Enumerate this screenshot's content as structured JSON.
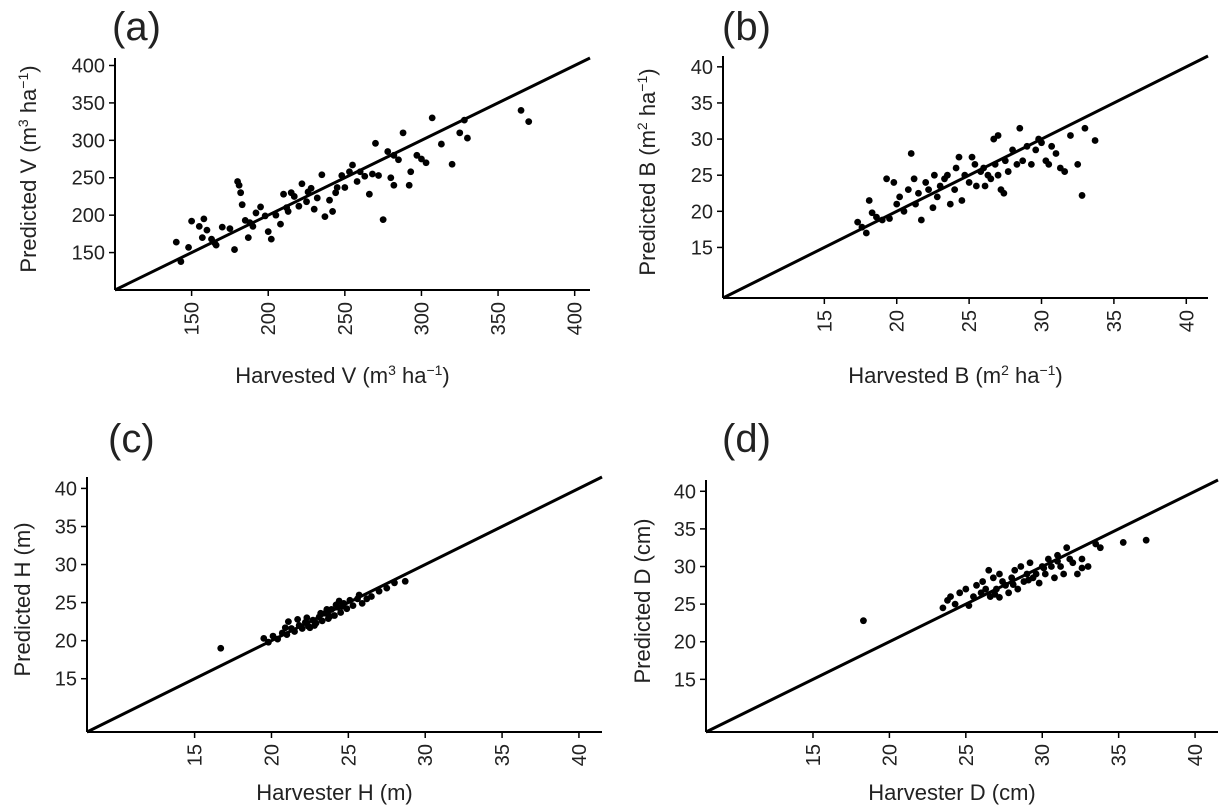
{
  "chart_data": [
    {
      "type": "scatter",
      "panel_label": "(a)",
      "xlabel": "Harvested V (m3 ha−1)",
      "ylabel": "Predicted V (m3 ha−1)",
      "xlabel_parts": {
        "pre": "Harvested V (m",
        "sup1": "3",
        "mid": " ha",
        "sup2": "−1",
        "post": ")"
      },
      "ylabel_parts": {
        "pre": "Predicted V (m",
        "sup1": "3",
        "mid": " ha",
        "sup2": "−1",
        "post": ")"
      },
      "xlim": [
        100,
        410
      ],
      "ylim": [
        100,
        410
      ],
      "xticks": [
        150,
        200,
        250,
        300,
        350,
        400
      ],
      "xtick_labels": [
        "150",
        "200",
        "250",
        "300",
        "350",
        "400"
      ],
      "yticks": [
        150,
        200,
        250,
        300,
        350,
        400
      ],
      "ytick_labels": [
        "150",
        "200",
        "250",
        "300",
        "350",
        "400"
      ],
      "reference_line": "1:1",
      "grid": false,
      "points": [
        [
          140,
          164
        ],
        [
          143,
          138
        ],
        [
          148,
          157
        ],
        [
          150,
          192
        ],
        [
          155,
          185
        ],
        [
          157,
          170
        ],
        [
          158,
          195
        ],
        [
          160,
          180
        ],
        [
          163,
          168
        ],
        [
          165,
          163
        ],
        [
          166,
          160
        ],
        [
          170,
          184
        ],
        [
          175,
          182
        ],
        [
          178,
          154
        ],
        [
          180,
          245
        ],
        [
          181,
          240
        ],
        [
          182,
          230
        ],
        [
          183,
          214
        ],
        [
          185,
          193
        ],
        [
          187,
          170
        ],
        [
          188,
          190
        ],
        [
          190,
          185
        ],
        [
          192,
          203
        ],
        [
          195,
          211
        ],
        [
          198,
          199
        ],
        [
          200,
          178
        ],
        [
          202,
          168
        ],
        [
          205,
          200
        ],
        [
          208,
          188
        ],
        [
          210,
          228
        ],
        [
          212,
          210
        ],
        [
          213,
          205
        ],
        [
          215,
          230
        ],
        [
          217,
          225
        ],
        [
          220,
          212
        ],
        [
          222,
          242
        ],
        [
          225,
          218
        ],
        [
          226,
          231
        ],
        [
          228,
          236
        ],
        [
          230,
          208
        ],
        [
          232,
          223
        ],
        [
          235,
          254
        ],
        [
          237,
          198
        ],
        [
          240,
          220
        ],
        [
          242,
          205
        ],
        [
          244,
          230
        ],
        [
          245,
          237
        ],
        [
          248,
          253
        ],
        [
          250,
          237
        ],
        [
          253,
          258
        ],
        [
          255,
          267
        ],
        [
          258,
          245
        ],
        [
          260,
          258
        ],
        [
          263,
          252
        ],
        [
          266,
          228
        ],
        [
          268,
          255
        ],
        [
          270,
          296
        ],
        [
          272,
          253
        ],
        [
          275,
          194
        ],
        [
          278,
          285
        ],
        [
          280,
          250
        ],
        [
          282,
          240
        ],
        [
          282,
          280
        ],
        [
          285,
          274
        ],
        [
          288,
          310
        ],
        [
          292,
          240
        ],
        [
          293,
          258
        ],
        [
          297,
          280
        ],
        [
          300,
          275
        ],
        [
          303,
          270
        ],
        [
          307,
          330
        ],
        [
          313,
          295
        ],
        [
          320,
          268
        ],
        [
          325,
          310
        ],
        [
          328,
          327
        ],
        [
          330,
          303
        ],
        [
          365,
          340
        ],
        [
          370,
          325
        ]
      ]
    },
    {
      "type": "scatter",
      "panel_label": "(b)",
      "xlabel": "Harvested B (m2 ha−1)",
      "ylabel": "Predicted B (m2 ha−1)",
      "xlabel_parts": {
        "pre": "Harvested B (m",
        "sup1": "2",
        "mid": " ha",
        "sup2": "−1",
        "post": ")"
      },
      "ylabel_parts": {
        "pre": "Predicted B (m",
        "sup1": "2",
        "mid": " ha",
        "sup2": "−1",
        "post": ")"
      },
      "xlim": [
        8,
        41.5
      ],
      "ylim": [
        8,
        41.5
      ],
      "xticks": [
        15,
        20,
        25,
        30,
        35,
        40
      ],
      "xtick_labels": [
        "15",
        "20",
        "25",
        "30",
        "35",
        "40"
      ],
      "yticks": [
        15,
        20,
        25,
        30,
        35,
        40
      ],
      "ytick_labels": [
        "15",
        "20",
        "25",
        "30",
        "35",
        "40"
      ],
      "reference_line": "1:1",
      "grid": false,
      "points": [
        [
          17.3,
          18.5
        ],
        [
          17.6,
          17.8
        ],
        [
          17.9,
          17.0
        ],
        [
          18.1,
          21.5
        ],
        [
          18.3,
          19.8
        ],
        [
          18.6,
          19.2
        ],
        [
          19.0,
          18.8
        ],
        [
          19.3,
          24.5
        ],
        [
          19.5,
          19.0
        ],
        [
          19.8,
          24.0
        ],
        [
          20.0,
          21.0
        ],
        [
          20.2,
          22.0
        ],
        [
          20.5,
          20.0
        ],
        [
          20.8,
          23.0
        ],
        [
          21.0,
          28.0
        ],
        [
          21.2,
          24.5
        ],
        [
          21.3,
          21.0
        ],
        [
          21.5,
          22.5
        ],
        [
          21.7,
          18.8
        ],
        [
          22.0,
          24.0
        ],
        [
          22.2,
          23.0
        ],
        [
          22.5,
          20.5
        ],
        [
          22.6,
          25.0
        ],
        [
          22.8,
          22.0
        ],
        [
          23.0,
          23.5
        ],
        [
          23.3,
          24.5
        ],
        [
          23.5,
          25.0
        ],
        [
          23.7,
          21.0
        ],
        [
          24.0,
          23.0
        ],
        [
          24.1,
          26.0
        ],
        [
          24.3,
          27.5
        ],
        [
          24.5,
          21.5
        ],
        [
          24.7,
          25.0
        ],
        [
          25.0,
          24.0
        ],
        [
          25.2,
          27.5
        ],
        [
          25.4,
          26.5
        ],
        [
          25.5,
          23.5
        ],
        [
          25.8,
          25.5
        ],
        [
          26.0,
          26.0
        ],
        [
          26.1,
          23.5
        ],
        [
          26.3,
          25.0
        ],
        [
          26.5,
          24.5
        ],
        [
          26.7,
          30.0
        ],
        [
          26.8,
          26.5
        ],
        [
          27.0,
          25.0
        ],
        [
          27.2,
          23.0
        ],
        [
          27.4,
          22.5
        ],
        [
          27.5,
          27.0
        ],
        [
          27.7,
          25.5
        ],
        [
          28.0,
          28.5
        ],
        [
          28.3,
          26.5
        ],
        [
          28.5,
          31.5
        ],
        [
          28.7,
          27.0
        ],
        [
          29.0,
          29.0
        ],
        [
          29.3,
          26.5
        ],
        [
          29.6,
          28.5
        ],
        [
          29.8,
          30.0
        ],
        [
          30.0,
          29.5
        ],
        [
          30.3,
          27.0
        ],
        [
          30.5,
          26.5
        ],
        [
          30.7,
          29.0
        ],
        [
          31.0,
          28.0
        ],
        [
          31.3,
          26.0
        ],
        [
          31.6,
          25.5
        ],
        [
          32.0,
          30.5
        ],
        [
          32.5,
          26.5
        ],
        [
          32.8,
          22.2
        ],
        [
          33.0,
          31.5
        ],
        [
          33.7,
          29.8
        ],
        [
          27.0,
          30.5
        ]
      ]
    },
    {
      "type": "scatter",
      "panel_label": "(c)",
      "xlabel": "Harvester H (m)",
      "ylabel": "Predicted H (m)",
      "xlim": [
        8,
        41.5
      ],
      "ylim": [
        8,
        41.5
      ],
      "xticks": [
        15,
        20,
        25,
        30,
        35,
        40
      ],
      "xtick_labels": [
        "15",
        "20",
        "25",
        "30",
        "35",
        "40"
      ],
      "yticks": [
        15,
        20,
        25,
        30,
        35,
        40
      ],
      "ytick_labels": [
        "15",
        "20",
        "25",
        "30",
        "35",
        "40"
      ],
      "reference_line": "1:1",
      "grid": false,
      "points": [
        [
          16.7,
          19.0
        ],
        [
          19.5,
          20.3
        ],
        [
          19.8,
          19.8
        ],
        [
          20.1,
          20.6
        ],
        [
          20.4,
          20.2
        ],
        [
          20.7,
          21.0
        ],
        [
          21.0,
          20.8
        ],
        [
          21.3,
          21.6
        ],
        [
          21.5,
          21.2
        ],
        [
          21.8,
          22.0
        ],
        [
          22.0,
          21.6
        ],
        [
          22.2,
          22.4
        ],
        [
          22.4,
          21.9
        ],
        [
          22.7,
          22.7
        ],
        [
          22.9,
          22.3
        ],
        [
          23.1,
          23.1
        ],
        [
          23.3,
          22.6
        ],
        [
          23.5,
          23.6
        ],
        [
          23.7,
          22.9
        ],
        [
          23.9,
          24.1
        ],
        [
          24.1,
          23.3
        ],
        [
          24.3,
          24.4
        ],
        [
          24.5,
          23.7
        ],
        [
          24.7,
          24.9
        ],
        [
          24.9,
          24.2
        ],
        [
          25.1,
          25.3
        ],
        [
          25.3,
          24.6
        ],
        [
          25.6,
          25.5
        ],
        [
          25.9,
          24.9
        ],
        [
          26.2,
          25.5
        ],
        [
          26.5,
          25.8
        ],
        [
          27.0,
          26.5
        ],
        [
          27.5,
          26.9
        ],
        [
          28.0,
          27.6
        ],
        [
          28.7,
          27.8
        ],
        [
          21.1,
          22.5
        ],
        [
          22.3,
          23.0
        ],
        [
          23.6,
          24.1
        ],
        [
          24.6,
          24.5
        ],
        [
          23.2,
          23.6
        ],
        [
          22.5,
          21.7
        ],
        [
          24.4,
          25.2
        ],
        [
          20.9,
          21.7
        ],
        [
          21.7,
          22.8
        ],
        [
          23.8,
          23.2
        ],
        [
          25.7,
          26.0
        ],
        [
          22.8,
          22.0
        ],
        [
          24.2,
          24.7
        ]
      ]
    },
    {
      "type": "scatter",
      "panel_label": "(d)",
      "xlabel": "Harvester D (cm)",
      "ylabel": "Predicted D (cm)",
      "xlim": [
        8,
        41.5
      ],
      "ylim": [
        8,
        41.5
      ],
      "xticks": [
        15,
        20,
        25,
        30,
        35,
        40
      ],
      "xtick_labels": [
        "15",
        "20",
        "25",
        "30",
        "35",
        "40"
      ],
      "yticks": [
        15,
        20,
        25,
        30,
        35,
        40
      ],
      "ytick_labels": [
        "15",
        "20",
        "25",
        "30",
        "35",
        "40"
      ],
      "reference_line": "1:1",
      "grid": false,
      "points": [
        [
          18.3,
          22.8
        ],
        [
          23.5,
          24.5
        ],
        [
          23.8,
          25.5
        ],
        [
          24.0,
          26.0
        ],
        [
          24.3,
          25.0
        ],
        [
          24.6,
          26.5
        ],
        [
          25.0,
          27.0
        ],
        [
          25.2,
          24.8
        ],
        [
          25.5,
          26.0
        ],
        [
          25.7,
          27.5
        ],
        [
          26.0,
          26.5
        ],
        [
          26.1,
          28.0
        ],
        [
          26.3,
          27.0
        ],
        [
          26.5,
          29.5
        ],
        [
          26.6,
          26.0
        ],
        [
          26.8,
          28.5
        ],
        [
          27.0,
          27.0
        ],
        [
          27.2,
          29.0
        ],
        [
          27.4,
          28.0
        ],
        [
          27.6,
          27.5
        ],
        [
          27.8,
          26.5
        ],
        [
          28.0,
          28.5
        ],
        [
          28.2,
          29.5
        ],
        [
          28.4,
          27.0
        ],
        [
          28.6,
          30.0
        ],
        [
          28.8,
          28.0
        ],
        [
          29.0,
          29.0
        ],
        [
          29.2,
          30.5
        ],
        [
          29.4,
          28.5
        ],
        [
          29.6,
          29.0
        ],
        [
          29.8,
          27.8
        ],
        [
          30.0,
          30.0
        ],
        [
          30.2,
          29.0
        ],
        [
          30.4,
          31.0
        ],
        [
          30.6,
          30.0
        ],
        [
          30.8,
          28.5
        ],
        [
          31.0,
          31.5
        ],
        [
          31.2,
          30.0
        ],
        [
          31.4,
          29.0
        ],
        [
          31.6,
          32.5
        ],
        [
          31.8,
          31.0
        ],
        [
          32.0,
          30.5
        ],
        [
          32.3,
          29.0
        ],
        [
          32.6,
          31.0
        ],
        [
          33.0,
          30.0
        ],
        [
          33.5,
          33.0
        ],
        [
          33.8,
          32.5
        ],
        [
          35.3,
          33.2
        ],
        [
          36.8,
          33.5
        ],
        [
          27.2,
          25.9
        ],
        [
          26.9,
          26.3
        ],
        [
          28.1,
          27.6
        ],
        [
          29.1,
          28.2
        ],
        [
          31.0,
          30.7
        ],
        [
          30.1,
          29.8
        ],
        [
          32.6,
          29.8
        ]
      ]
    }
  ]
}
